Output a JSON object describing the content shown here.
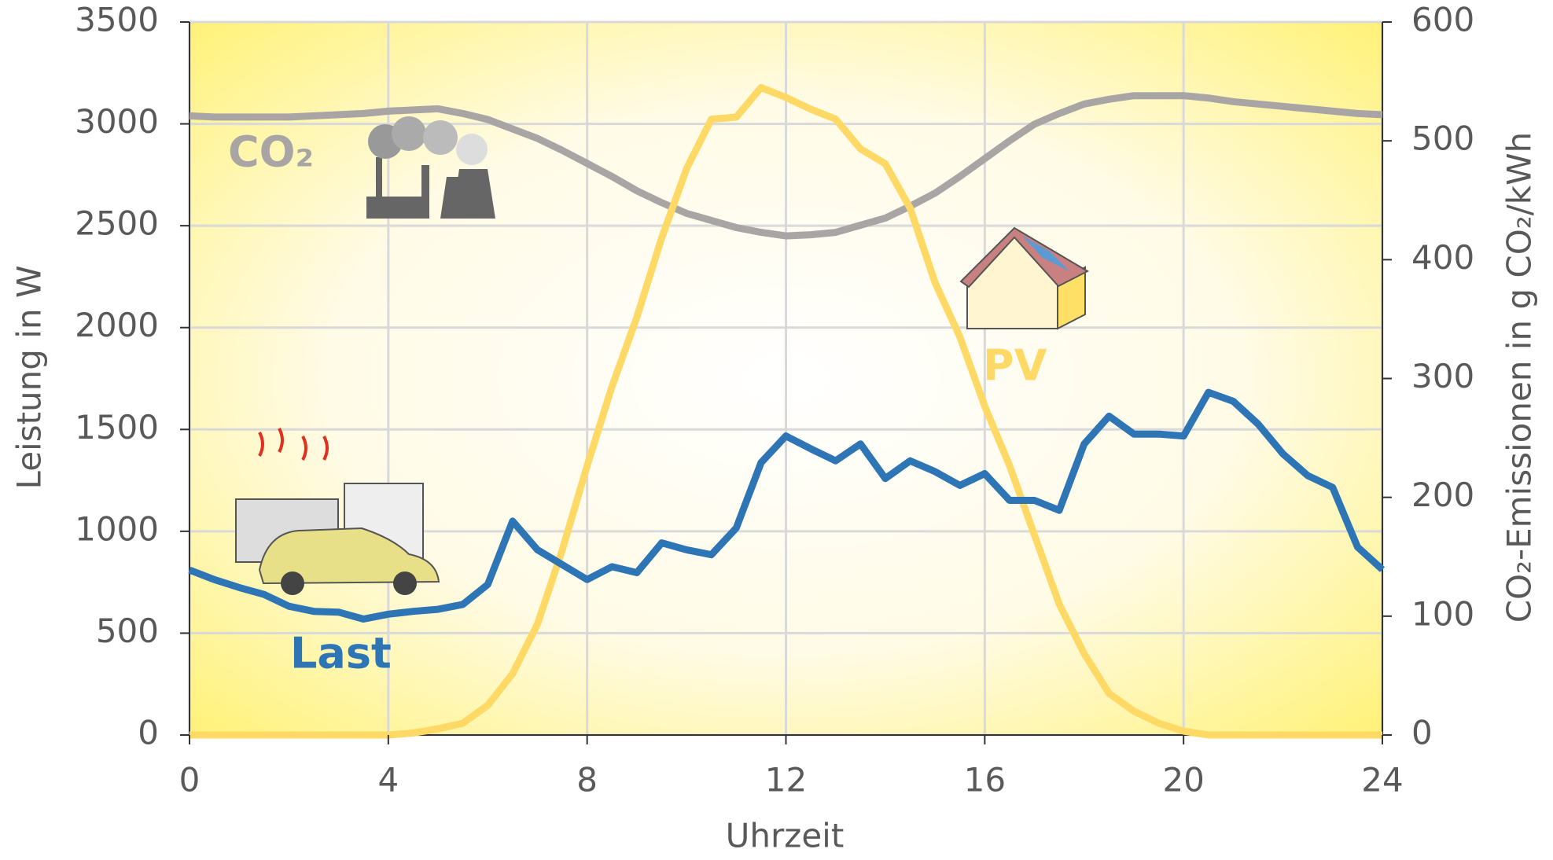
{
  "chart_data": {
    "type": "line",
    "x_label": "Uhrzeit",
    "y_label": "Leistung in W",
    "y2_label": "CO₂-Emissionen in g CO₂/kWh",
    "x": [
      0,
      0.5,
      1,
      1.5,
      2,
      2.5,
      3,
      3.5,
      4,
      4.5,
      5,
      5.5,
      6,
      6.5,
      7,
      7.5,
      8,
      8.5,
      9,
      9.5,
      10,
      10.5,
      11,
      11.5,
      12,
      12.5,
      13,
      13.5,
      14,
      14.5,
      15,
      15.5,
      16,
      16.5,
      17,
      17.5,
      18,
      18.5,
      19,
      19.5,
      20,
      20.5,
      21,
      21.5,
      22,
      22.5,
      23,
      23.5,
      24
    ],
    "series": [
      {
        "name": "Last",
        "color": "#2e75b6",
        "values": [
          810,
          763,
          724,
          690,
          632,
          607,
          603,
          569,
          593,
          607,
          617,
          641,
          739,
          1050,
          909,
          836,
          763,
          826,
          797,
          943,
          909,
          885,
          1016,
          1337,
          1468,
          1405,
          1346,
          1429,
          1259,
          1346,
          1293,
          1225,
          1283,
          1152,
          1152,
          1103,
          1429,
          1565,
          1477,
          1477,
          1468,
          1682,
          1638,
          1526,
          1380,
          1273,
          1215,
          923,
          812
        ]
      },
      {
        "name": "PV",
        "color": "#ffd966",
        "values": [
          0,
          0,
          0,
          0,
          0,
          0,
          0,
          0,
          0,
          10,
          30,
          58,
          146,
          301,
          544,
          909,
          1322,
          1711,
          2051,
          2440,
          2780,
          3023,
          3033,
          3178,
          3130,
          3072,
          3023,
          2877,
          2804,
          2586,
          2221,
          1954,
          1614,
          1322,
          982,
          642,
          399,
          204,
          117,
          58,
          19,
          0,
          0,
          0,
          0,
          0,
          0,
          0,
          0
        ]
      },
      {
        "name": "CO₂",
        "color": "#aaa5a5",
        "axis": "y2",
        "values": [
          521,
          520,
          520,
          520,
          520,
          521,
          522,
          523,
          525,
          526,
          527,
          523,
          518,
          510,
          502,
          492,
          481,
          470,
          458,
          448,
          439,
          433,
          427,
          423,
          420,
          421,
          423,
          429,
          435,
          445,
          456,
          470,
          485,
          500,
          514,
          523,
          531,
          535,
          538,
          538,
          538,
          536,
          533,
          531,
          529,
          527,
          525,
          523,
          522
        ]
      }
    ],
    "xlim": [
      0,
      24
    ],
    "xticks": [
      0,
      4,
      8,
      12,
      16,
      20,
      24
    ],
    "ylim": [
      0,
      3500
    ],
    "yticks": [
      0,
      500,
      1000,
      1500,
      2000,
      2500,
      3000,
      3500
    ],
    "y2lim": [
      0,
      600
    ],
    "y2ticks": [
      0,
      100,
      200,
      300,
      400,
      500,
      600
    ],
    "grid": true
  }
}
